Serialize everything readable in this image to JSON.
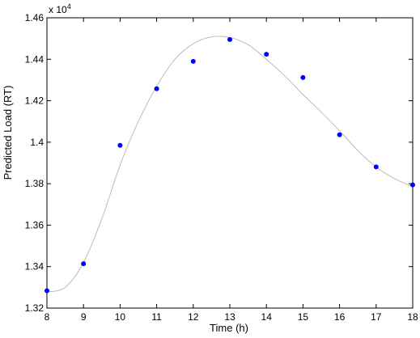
{
  "chart_data": {
    "type": "scatter",
    "xlabel": "Time (h)",
    "ylabel": "Predicted Load (RT)",
    "y_multiplier": {
      "base": "x 10",
      "exponent": "4"
    },
    "xlim": [
      8,
      18
    ],
    "ylim": [
      1.32,
      1.46
    ],
    "x_ticks": [
      8,
      9,
      10,
      11,
      12,
      13,
      14,
      15,
      16,
      17,
      18
    ],
    "y_ticks": [
      1.32,
      1.34,
      1.36,
      1.38,
      1.4,
      1.42,
      1.44,
      1.46
    ],
    "y_tick_labels": [
      "1.32",
      "1.34",
      "1.36",
      "1.38",
      "1.4",
      "1.42",
      "1.44",
      "1.46"
    ],
    "grid": false,
    "legend": "none",
    "series": [
      {
        "type": "scatter",
        "color": "#0000ff",
        "x": [
          8,
          9,
          10,
          11,
          12,
          13,
          14,
          15,
          16,
          17,
          18
        ],
        "y": [
          1.3284,
          1.3414,
          1.3985,
          1.4258,
          1.439,
          1.4495,
          1.4424,
          1.4312,
          1.4036,
          1.3881,
          1.3794
        ]
      },
      {
        "type": "line",
        "color": "#bbbbbb",
        "x": [
          8,
          8.5,
          9,
          9.5,
          10,
          10.5,
          11,
          11.5,
          12,
          12.5,
          13,
          13.5,
          14,
          14.5,
          15,
          15.5,
          16,
          16.5,
          17,
          17.5,
          18
        ],
        "y": [
          1.3278,
          1.33,
          1.342,
          1.363,
          1.389,
          1.41,
          1.427,
          1.44,
          1.4475,
          1.4508,
          1.4505,
          1.447,
          1.44,
          1.432,
          1.423,
          1.4145,
          1.4055,
          1.396,
          1.388,
          1.3825,
          1.3785
        ]
      }
    ]
  }
}
